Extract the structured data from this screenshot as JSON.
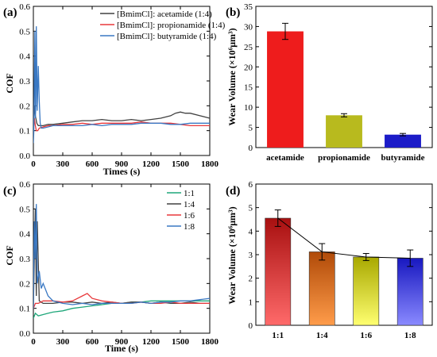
{
  "chart_data": [
    {
      "panel_label": "(a)",
      "type": "line",
      "xlabel": "Times (s)",
      "ylabel": "COF",
      "xlim": [
        0,
        1800
      ],
      "ylim": [
        0,
        0.6
      ],
      "xticks": [
        0,
        300,
        600,
        900,
        1200,
        1500,
        1800
      ],
      "yticks": [
        0.0,
        0.1,
        0.2,
        0.3,
        0.4,
        0.5,
        0.6
      ],
      "legend_position": "top-right",
      "series": [
        {
          "name": "[BmimCl]: acetamide (1:4)",
          "color": "#404040",
          "x": [
            0,
            10,
            20,
            35,
            50,
            70,
            100,
            150,
            200,
            300,
            400,
            500,
            600,
            700,
            800,
            900,
            1000,
            1100,
            1200,
            1300,
            1400,
            1450,
            1500,
            1550,
            1600,
            1700,
            1800
          ],
          "y": [
            0.08,
            0.2,
            0.16,
            0.13,
            0.12,
            0.12,
            0.12,
            0.125,
            0.125,
            0.13,
            0.135,
            0.14,
            0.14,
            0.145,
            0.14,
            0.14,
            0.145,
            0.14,
            0.145,
            0.15,
            0.16,
            0.17,
            0.175,
            0.17,
            0.17,
            0.16,
            0.15
          ]
        },
        {
          "name": "[BmimCl]: propionamide (1:4)",
          "color": "#e8383b",
          "x": [
            0,
            10,
            20,
            30,
            45,
            60,
            100,
            150,
            200,
            300,
            400,
            500,
            600,
            700,
            800,
            900,
            1000,
            1100,
            1200,
            1300,
            1400,
            1500,
            1600,
            1700,
            1800
          ],
          "y": [
            0.1,
            0.15,
            0.12,
            0.1,
            0.1,
            0.11,
            0.115,
            0.12,
            0.12,
            0.125,
            0.125,
            0.13,
            0.125,
            0.13,
            0.13,
            0.13,
            0.13,
            0.135,
            0.13,
            0.13,
            0.13,
            0.125,
            0.12,
            0.12,
            0.12
          ]
        },
        {
          "name": "[BmimCl]: butyramide (1:4)",
          "color": "#3a78c3",
          "x": [
            0,
            5,
            10,
            15,
            20,
            25,
            30,
            40,
            50,
            60,
            70,
            80,
            100,
            150,
            200,
            300,
            400,
            500,
            600,
            700,
            800,
            900,
            1000,
            1100,
            1200,
            1300,
            1400,
            1500,
            1600,
            1700,
            1800
          ],
          "y": [
            0.05,
            0.1,
            0.3,
            0.5,
            0.15,
            0.2,
            0.52,
            0.18,
            0.36,
            0.22,
            0.13,
            0.11,
            0.11,
            0.115,
            0.12,
            0.12,
            0.12,
            0.12,
            0.125,
            0.12,
            0.125,
            0.125,
            0.125,
            0.13,
            0.13,
            0.13,
            0.125,
            0.125,
            0.13,
            0.13,
            0.13
          ]
        }
      ]
    },
    {
      "panel_label": "(b)",
      "type": "bar",
      "xlabel": "",
      "ylabel": "Wear Volume (×10⁶μm³)",
      "ylim": [
        0,
        35
      ],
      "yticks": [
        0,
        5,
        10,
        15,
        20,
        25,
        30,
        35
      ],
      "categories": [
        "acetamide",
        "propionamide",
        "butyramide"
      ],
      "values": [
        28.8,
        8.0,
        3.2
      ],
      "errors": [
        2.0,
        0.4,
        0.3
      ],
      "colors": [
        "#ee1c1c",
        "#b8ba1e",
        "#1c1cc8"
      ]
    },
    {
      "panel_label": "(c)",
      "type": "line",
      "xlabel": "Time (s)",
      "ylabel": "COF",
      "xlim": [
        0,
        1800
      ],
      "ylim": [
        0,
        0.6
      ],
      "xticks": [
        0,
        300,
        600,
        900,
        1200,
        1500,
        1800
      ],
      "yticks": [
        0.0,
        0.1,
        0.2,
        0.3,
        0.4,
        0.5,
        0.6
      ],
      "legend_position": "top-right",
      "series": [
        {
          "name": "1:1",
          "color": "#1fa77a",
          "x": [
            0,
            20,
            50,
            100,
            150,
            200,
            300,
            400,
            500,
            600,
            700,
            800,
            900,
            1000,
            1100,
            1200,
            1300,
            1400,
            1500,
            1600,
            1700,
            1800
          ],
          "y": [
            0.06,
            0.08,
            0.07,
            0.075,
            0.08,
            0.085,
            0.09,
            0.1,
            0.105,
            0.11,
            0.115,
            0.12,
            0.12,
            0.125,
            0.125,
            0.13,
            0.13,
            0.13,
            0.13,
            0.13,
            0.13,
            0.13
          ]
        },
        {
          "name": "1:4",
          "color": "#404040",
          "x": [
            0,
            10,
            20,
            30,
            40,
            60,
            100,
            150,
            200,
            300,
            400,
            500,
            600,
            700,
            800,
            900,
            1000,
            1100,
            1200,
            1300,
            1400,
            1500,
            1600,
            1700,
            1800
          ],
          "y": [
            0.1,
            0.3,
            0.5,
            0.15,
            0.45,
            0.13,
            0.12,
            0.12,
            0.12,
            0.125,
            0.125,
            0.12,
            0.125,
            0.12,
            0.125,
            0.12,
            0.125,
            0.125,
            0.12,
            0.125,
            0.12,
            0.12,
            0.125,
            0.12,
            0.12
          ]
        },
        {
          "name": "1:6",
          "color": "#e8383b",
          "x": [
            0,
            20,
            50,
            100,
            200,
            300,
            400,
            500,
            550,
            600,
            700,
            800,
            900,
            1000,
            1100,
            1200,
            1300,
            1400,
            1500,
            1600,
            1700,
            1800
          ],
          "y": [
            0.1,
            0.12,
            0.12,
            0.13,
            0.13,
            0.125,
            0.13,
            0.15,
            0.16,
            0.14,
            0.13,
            0.125,
            0.12,
            0.12,
            0.125,
            0.12,
            0.12,
            0.125,
            0.12,
            0.12,
            0.12,
            0.12
          ]
        },
        {
          "name": "1:8",
          "color": "#3a78c3",
          "x": [
            0,
            10,
            20,
            30,
            40,
            60,
            80,
            100,
            150,
            200,
            300,
            400,
            500,
            600,
            700,
            800,
            900,
            1000,
            1100,
            1200,
            1300,
            1400,
            1500,
            1600,
            1700,
            1800
          ],
          "y": [
            0.1,
            0.45,
            0.3,
            0.52,
            0.2,
            0.25,
            0.18,
            0.2,
            0.15,
            0.13,
            0.12,
            0.115,
            0.12,
            0.115,
            0.12,
            0.12,
            0.12,
            0.12,
            0.125,
            0.12,
            0.125,
            0.125,
            0.13,
            0.13,
            0.135,
            0.14
          ]
        }
      ]
    },
    {
      "panel_label": "(d)",
      "type": "bar",
      "xlabel": "",
      "ylabel": "Wear Volume (×10⁶μm³)",
      "ylim": [
        0,
        6
      ],
      "yticks": [
        0,
        1,
        2,
        3,
        4,
        5,
        6
      ],
      "categories": [
        "1:1",
        "1:4",
        "1:6",
        "1:8"
      ],
      "values": [
        4.55,
        3.12,
        2.9,
        2.85
      ],
      "errors": [
        0.35,
        0.35,
        0.15,
        0.35
      ],
      "gradients": [
        [
          "#a81010",
          "#ff6a6a"
        ],
        [
          "#b04a08",
          "#ff9c4a"
        ],
        [
          "#a8a800",
          "#ffff70"
        ],
        [
          "#1818c0",
          "#8a8aff"
        ]
      ],
      "connect_line": true
    }
  ]
}
